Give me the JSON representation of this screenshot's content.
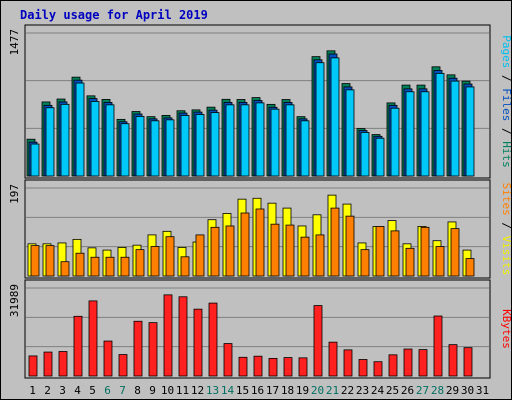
{
  "chart_data": {
    "type": "bar",
    "title": "Daily usage for April 2019",
    "x": [
      "1",
      "2",
      "3",
      "4",
      "5",
      "6",
      "7",
      "8",
      "9",
      "10",
      "11",
      "12",
      "13",
      "14",
      "15",
      "16",
      "17",
      "18",
      "19",
      "20",
      "21",
      "22",
      "23",
      "24",
      "25",
      "26",
      "27",
      "28",
      "29",
      "30",
      "31"
    ],
    "weekend_days": [
      "6",
      "7",
      "13",
      "14",
      "20",
      "21",
      "27",
      "28"
    ],
    "panels": [
      {
        "id": "pages_files",
        "max_label": "1477",
        "ymax": 1477,
        "ylabel_parts": [
          {
            "text": "Pages",
            "color": "#00c0f0"
          },
          {
            "text": " / ",
            "color": "#000000"
          },
          {
            "text": "Files",
            "color": "#0050c0"
          },
          {
            "text": " / ",
            "color": "#000000"
          },
          {
            "text": "Hits",
            "color": "#008060"
          }
        ],
        "series": [
          {
            "name": "Hits",
            "color": "#00805a",
            "values": [
              380,
              765,
              795,
              1021,
              828,
              791,
              585,
              666,
              613,
              626,
              674,
              683,
              711,
              792,
              790,
              810,
              740,
              790,
              613,
              1233,
              1293,
              955,
              490,
              428,
              755,
              939,
              939,
              1128,
              1045,
              980,
              0
            ]
          },
          {
            "name": "Files",
            "color": "#0050c0",
            "values": [
              350,
              730,
              765,
              990,
              800,
              760,
              560,
              640,
              590,
              600,
              650,
              660,
              680,
              760,
              760,
              780,
              710,
              760,
              590,
              1200,
              1260,
              920,
              470,
              410,
              730,
              900,
              900,
              1090,
              1010,
              950,
              0
            ]
          },
          {
            "name": "Pages",
            "color": "#00c8f8",
            "values": [
              330,
              705,
              740,
              960,
              770,
              735,
              540,
              615,
              570,
              580,
              625,
              635,
              655,
              735,
              735,
              755,
              690,
              735,
              570,
              1170,
              1220,
              890,
              450,
              390,
              700,
              870,
              870,
              1060,
              980,
              920,
              0
            ]
          }
        ]
      },
      {
        "id": "visits_sites",
        "max_label": "197",
        "ymax": 197,
        "ylabel_parts": [
          {
            "text": "Sites",
            "color": "#ff8000"
          },
          {
            "text": " / ",
            "color": "#000000"
          },
          {
            "text": "Visits",
            "color": "#f0f000"
          }
        ],
        "series": [
          {
            "name": "Visits",
            "color": "#ffff00",
            "values": [
              72,
              72,
              74,
              82,
              63,
              58,
              64,
              69,
              92,
              100,
              64,
              76,
              126,
              140,
              172,
              174,
              163,
              152,
              112,
              137,
              181,
              161,
              74,
              111,
              124,
              72,
              111,
              79,
              121,
              58,
              0
            ]
          },
          {
            "name": "Sites",
            "color": "#ff8000",
            "values": [
              68,
              68,
              32,
              51,
              42,
              42,
              42,
              59,
              66,
              88,
              43,
              92,
              109,
              112,
              141,
              150,
              116,
              114,
              87,
              92,
              152,
              134,
              59,
              111,
              101,
              62,
              109,
              66,
              106,
              39,
              0
            ]
          }
        ]
      },
      {
        "id": "kbytes",
        "max_label": "31989",
        "ymax": 31989,
        "ylabel_parts": [
          {
            "text": "KBytes",
            "color": "#ff0000"
          }
        ],
        "series": [
          {
            "name": "KBytes",
            "color": "#ff2020",
            "values": [
              7300,
              8700,
              8900,
              21700,
              27300,
              12700,
              7800,
              19900,
              19400,
              29500,
              28800,
              24300,
              26500,
              11800,
              6800,
              7200,
              6400,
              6700,
              6600,
              25600,
              12300,
              9500,
              6000,
              5200,
              7700,
              9800,
              9600,
              21800,
              11400,
              10300,
              0
            ]
          }
        ]
      }
    ],
    "grid": true,
    "legend": "vertical labels along right edge of each panel"
  }
}
